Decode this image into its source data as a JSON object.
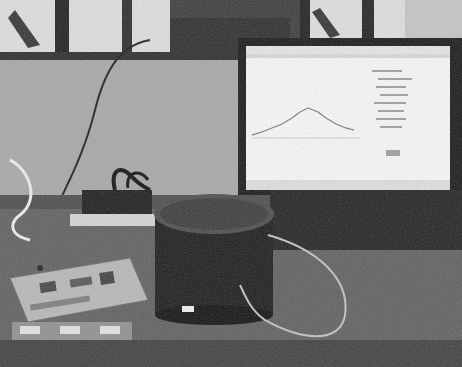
{
  "scene": {
    "type": "grayscale-lab-photo",
    "objects": [
      "monitor-with-spectrum-plot",
      "cylindrical-device",
      "circuit-board",
      "cables",
      "window-frames"
    ],
    "palette": {
      "wall": "#9c9c9c",
      "window": "#d6d6d6",
      "desk": "#5f5f5f",
      "screen": "#f2f2f2",
      "device": "#1d1d1d",
      "board": "#b5b5b5"
    }
  }
}
